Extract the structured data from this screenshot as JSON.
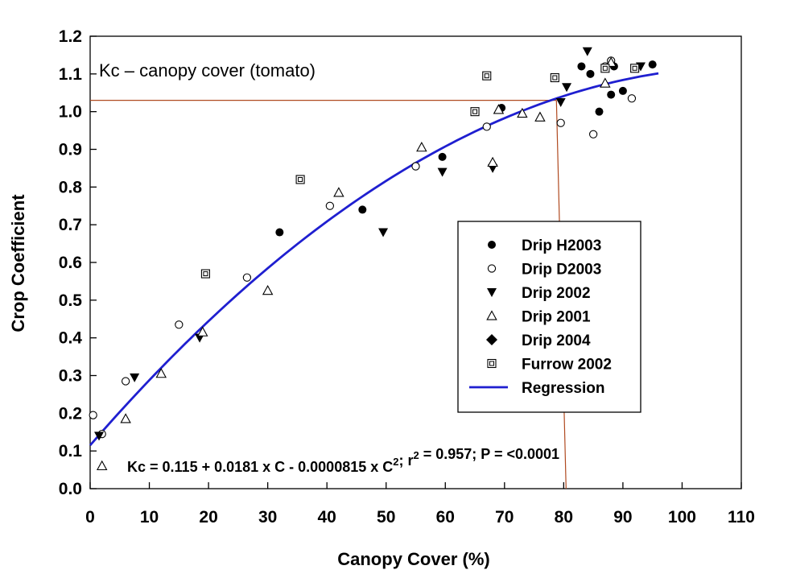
{
  "chart_data": {
    "type": "scatter",
    "title": "",
    "xlabel": "Canopy Cover (%)",
    "ylabel": "Crop Coefficient",
    "xlim": [
      0,
      110
    ],
    "ylim": [
      0,
      1.2
    ],
    "xticks": [
      0,
      10,
      20,
      30,
      40,
      50,
      60,
      70,
      80,
      90,
      100,
      110
    ],
    "yticks": [
      0.0,
      0.1,
      0.2,
      0.3,
      0.4,
      0.5,
      0.6,
      0.7,
      0.8,
      0.9,
      1.0,
      1.1,
      1.2
    ],
    "grid": false,
    "legend_position": "center-right",
    "annotation": "Kc – canopy cover (tomato)",
    "equation": "Kc = 0.115 + 0.0181 x C - 0.0000815 x C²; r² = 0.957; P = <0.0001",
    "reference_lines": {
      "x": 80.4,
      "y": 1.03,
      "color": "#b04a20"
    },
    "series": [
      {
        "name": "Drip H2003",
        "marker": "filled-circle",
        "points": [
          [
            32,
            0.68
          ],
          [
            46,
            0.74
          ],
          [
            59.5,
            0.88
          ],
          [
            69.5,
            1.01
          ],
          [
            83,
            1.12
          ],
          [
            84.5,
            1.1
          ],
          [
            86,
            1.0
          ],
          [
            88,
            1.045
          ],
          [
            88.5,
            1.12
          ],
          [
            90,
            1.055
          ],
          [
            95,
            1.125
          ]
        ]
      },
      {
        "name": "Drip D2003",
        "marker": "open-circle",
        "points": [
          [
            0.5,
            0.195
          ],
          [
            2,
            0.145
          ],
          [
            6,
            0.285
          ],
          [
            15,
            0.435
          ],
          [
            26.5,
            0.56
          ],
          [
            40.5,
            0.75
          ],
          [
            55,
            0.855
          ],
          [
            67,
            0.96
          ],
          [
            79.5,
            0.97
          ],
          [
            85,
            0.94
          ],
          [
            87,
            1.12
          ],
          [
            88,
            1.135
          ],
          [
            91.5,
            1.035
          ]
        ]
      },
      {
        "name": "Drip 2002",
        "marker": "filled-triangle-down",
        "points": [
          [
            1.5,
            0.14
          ],
          [
            7.5,
            0.295
          ],
          [
            18.5,
            0.4
          ],
          [
            49.5,
            0.68
          ],
          [
            59.5,
            0.84
          ],
          [
            68,
            0.85
          ],
          [
            79.5,
            1.025
          ],
          [
            80.5,
            1.065
          ],
          [
            84,
            1.16
          ],
          [
            93,
            1.12
          ]
        ]
      },
      {
        "name": "Drip 2001",
        "marker": "open-triangle-up",
        "points": [
          [
            2,
            0.06
          ],
          [
            6,
            0.185
          ],
          [
            12,
            0.305
          ],
          [
            19,
            0.415
          ],
          [
            30,
            0.525
          ],
          [
            42,
            0.785
          ],
          [
            56,
            0.905
          ],
          [
            68,
            0.865
          ],
          [
            69,
            1.005
          ],
          [
            73,
            0.995
          ],
          [
            76,
            0.985
          ],
          [
            87,
            1.075
          ],
          [
            88,
            1.13
          ]
        ]
      },
      {
        "name": "Drip 2004",
        "marker": "filled-diamond",
        "points": []
      },
      {
        "name": "Furrow 2002",
        "marker": "open-square",
        "points": [
          [
            19.5,
            0.57
          ],
          [
            35.5,
            0.82
          ],
          [
            65,
            1.0
          ],
          [
            67,
            1.095
          ],
          [
            78.5,
            1.09
          ],
          [
            87,
            1.115
          ],
          [
            92,
            1.115
          ]
        ]
      },
      {
        "name": "Regression",
        "marker": "line",
        "color": "#1f1fd0",
        "equation_coefficients": {
          "a": 0.115,
          "b": 0.0181,
          "c": -8.15e-05
        },
        "x_range": [
          0,
          96
        ]
      }
    ]
  }
}
